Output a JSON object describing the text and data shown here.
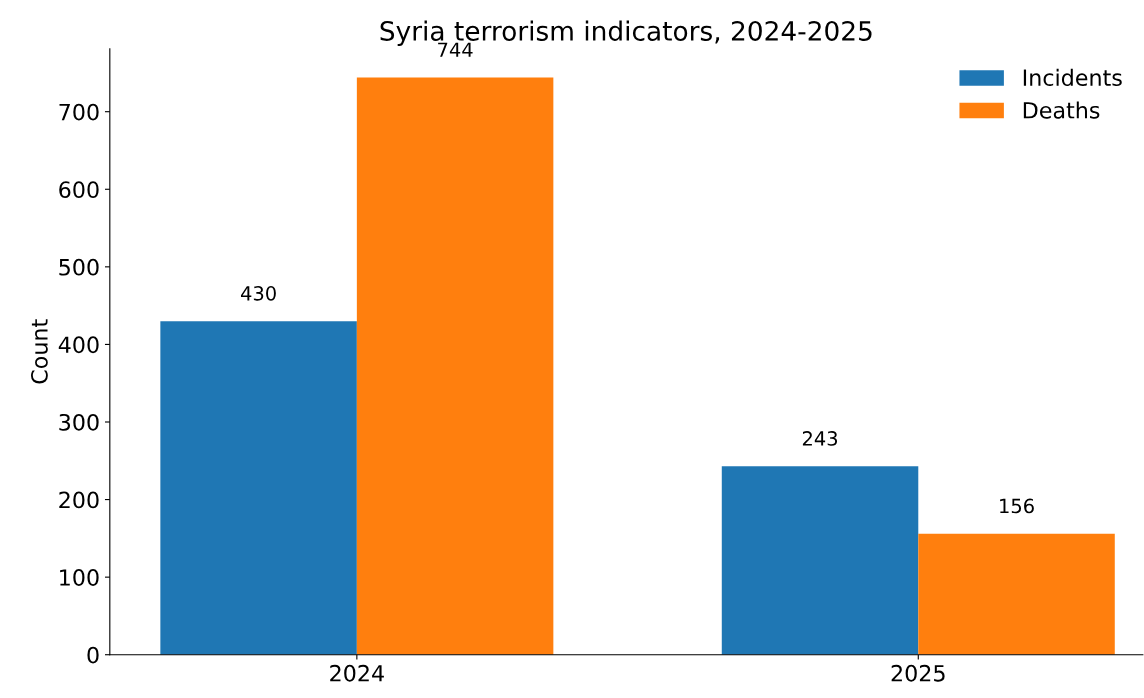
{
  "chart_data": {
    "type": "bar",
    "title": "Syria terrorism indicators, 2024-2025",
    "ylabel": "Count",
    "categories": [
      "2024",
      "2025"
    ],
    "series": [
      {
        "name": "Incidents",
        "color": "#1f77b4",
        "values": [
          430,
          243
        ]
      },
      {
        "name": "Deaths",
        "color": "#ff7f0e",
        "values": [
          744,
          156
        ]
      }
    ],
    "ylim": [
      0,
      781
    ],
    "yticks": [
      0,
      100,
      200,
      300,
      400,
      500,
      600,
      700
    ],
    "data_labels": true,
    "legend": "top right",
    "grid": false
  }
}
